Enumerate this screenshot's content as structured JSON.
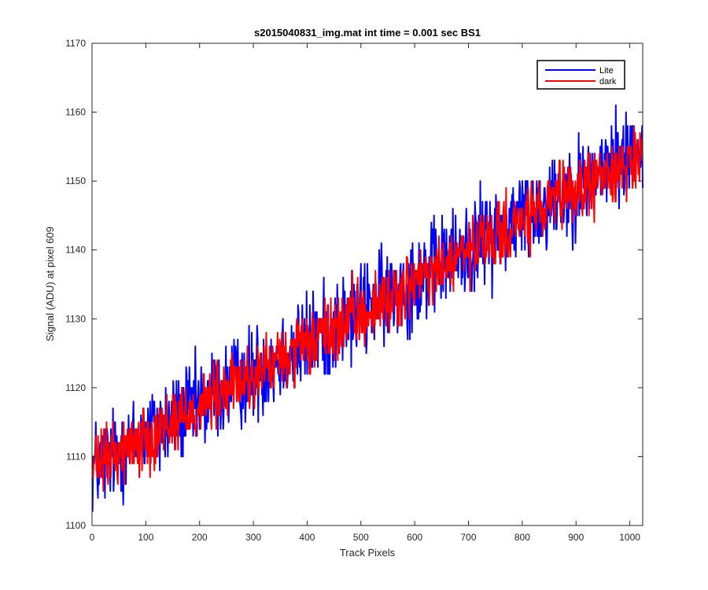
{
  "chart_data": {
    "type": "line",
    "title": "s2015040831_img.mat int time = 0.001 sec   BS1",
    "xlabel": "Track Pixels",
    "ylabel": "Signal (ADU) at pixel 609",
    "xlim": [
      0,
      1024
    ],
    "ylim": [
      1100,
      1170
    ],
    "xticks": [
      0,
      100,
      200,
      300,
      400,
      500,
      600,
      700,
      800,
      900,
      1000
    ],
    "yticks": [
      1100,
      1110,
      1120,
      1130,
      1140,
      1150,
      1160,
      1170
    ],
    "grid": false,
    "legend_position": "top-right",
    "series": [
      {
        "name": "Lite",
        "color": "#0000ff",
        "trend": {
          "start": 1108.5,
          "end": 1155
        },
        "noise_amplitude": 5.2,
        "x_range": [
          1,
          1024
        ]
      },
      {
        "name": "dark",
        "color": "#ff0000",
        "trend": {
          "start": 1108.5,
          "end": 1154
        },
        "noise_amplitude": 3.6,
        "x_range": [
          1,
          1024
        ]
      }
    ]
  }
}
